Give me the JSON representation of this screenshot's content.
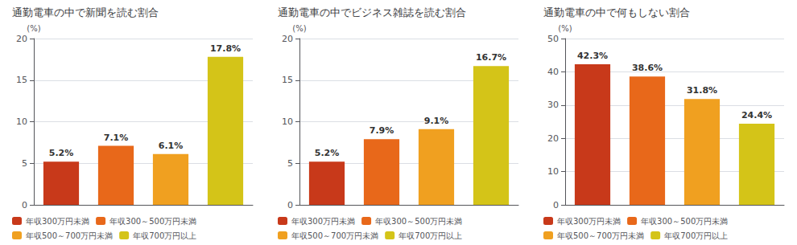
{
  "chart_data": [
    {
      "type": "bar",
      "title": "通勤電車の中で新聞を読む割合",
      "categories": [
        "年収300万円未満",
        "年収300～500万円未満",
        "年収500～700万円未満",
        "年収700万円以上"
      ],
      "values": [
        5.2,
        7.1,
        6.1,
        17.8
      ],
      "value_labels": [
        "5.2%",
        "7.1%",
        "6.1%",
        "17.8%"
      ],
      "colors": [
        "#c8391a",
        "#e8681a",
        "#f0a020",
        "#d4c418"
      ],
      "ylim": [
        0,
        20
      ],
      "yticks": [
        0,
        5,
        10,
        15,
        20
      ],
      "ylabel": "(%)",
      "grid": true,
      "data_labels": true,
      "tick_labels": "y",
      "legend": "lower left"
    },
    {
      "type": "bar",
      "title": "通勤電車の中でビジネス雑誌を読む割合",
      "categories": [
        "年収300万円未満",
        "年収300～500万円未満",
        "年収500～700万円未満",
        "年収700万円以上"
      ],
      "values": [
        5.2,
        7.9,
        9.1,
        16.7
      ],
      "value_labels": [
        "5.2%",
        "7.9%",
        "9.1%",
        "16.7%"
      ],
      "colors": [
        "#c8391a",
        "#e8681a",
        "#f0a020",
        "#d4c418"
      ],
      "ylim": [
        0,
        20
      ],
      "yticks": [
        0,
        5,
        10,
        15,
        20
      ],
      "ylabel": "(%)",
      "grid": true,
      "data_labels": true,
      "tick_labels": "y",
      "legend": "lower left"
    },
    {
      "type": "bar",
      "title": "通勤電車の中で何もしない割合",
      "categories": [
        "年収300万円未満",
        "年収300～500万円未満",
        "年収500～700万円未満",
        "年収700万円以上"
      ],
      "values": [
        42.3,
        38.6,
        31.8,
        24.4
      ],
      "value_labels": [
        "42.3%",
        "38.6%",
        "31.8%",
        "24.4%"
      ],
      "colors": [
        "#c8391a",
        "#e8681a",
        "#f0a020",
        "#d4c418"
      ],
      "ylim": [
        0,
        50
      ],
      "yticks": [
        0,
        10,
        20,
        30,
        40,
        50
      ],
      "ylabel": "(%)",
      "grid": true,
      "data_labels": true,
      "tick_labels": "y",
      "legend": "lower left"
    }
  ]
}
